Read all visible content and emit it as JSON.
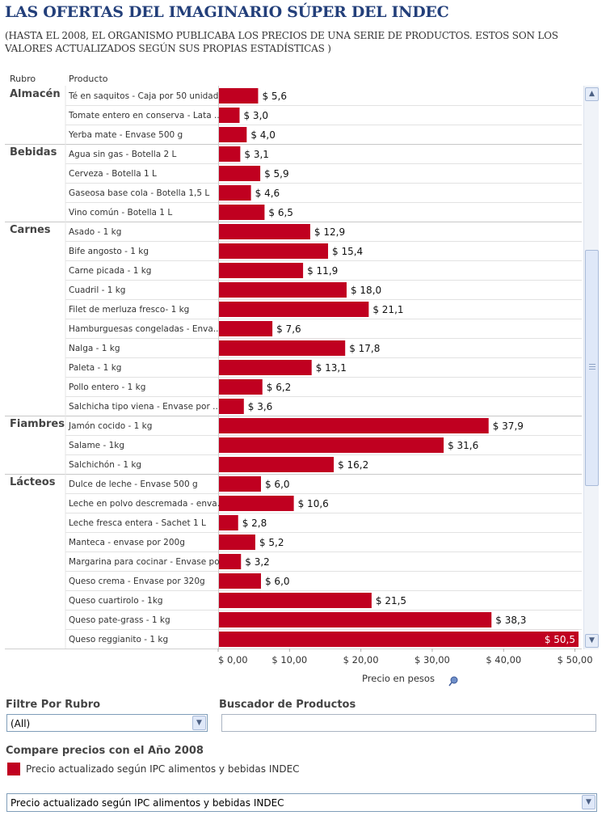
{
  "header": {
    "title": "LAS OFERTAS DEL IMAGINARIO SÚPER DEL INDEC",
    "subtitle": "(HASTA EL 2008, EL ORGANISMO PUBLICABA LOS PRECIOS DE UNA SERIE DE PRODUCTOS. ESTOS SON LOS VALORES ACTUALIZADOS SEGÚN SUS PROPIAS ESTADÍSTICAS )"
  },
  "columns": {
    "rubro": "Rubro",
    "producto": "Producto"
  },
  "chart_data": {
    "type": "bar",
    "orientation": "horizontal",
    "title": "LAS OFERTAS DEL IMAGINARIO SÚPER DEL INDEC",
    "xlabel": "Precio en pesos",
    "ylabel": "Producto",
    "xlim": [
      0,
      50.5
    ],
    "x_ticks": [
      0,
      10,
      20,
      30,
      40,
      50
    ],
    "x_tick_labels": [
      "$ 0,00",
      "$ 10,00",
      "$ 20,00",
      "$ 30,00",
      "$ 40,00",
      "$ 50,00"
    ],
    "color": "#c00020",
    "groups": [
      {
        "rubro": "Almacén",
        "items": [
          {
            "producto": "Té en saquitos - Caja por 50 unidad..",
            "value": 5.6,
            "label": "$ 5,6"
          },
          {
            "producto": "Tomate entero en conserva - Lata  ..",
            "value": 3.0,
            "label": "$ 3,0"
          },
          {
            "producto": "Yerba mate - Envase 500 g",
            "value": 4.0,
            "label": "$ 4,0"
          }
        ]
      },
      {
        "rubro": "Bebidas",
        "items": [
          {
            "producto": "Agua sin gas - Botella 2 L",
            "value": 3.1,
            "label": "$ 3,1"
          },
          {
            "producto": "Cerveza - Botella 1 L",
            "value": 5.9,
            "label": "$ 5,9"
          },
          {
            "producto": "Gaseosa base cola - Botella 1,5 L",
            "value": 4.6,
            "label": "$ 4,6"
          },
          {
            "producto": "Vino común - Botella 1 L",
            "value": 6.5,
            "label": "$ 6,5"
          }
        ]
      },
      {
        "rubro": "Carnes",
        "items": [
          {
            "producto": "Asado - 1 kg",
            "value": 12.9,
            "label": "$ 12,9"
          },
          {
            "producto": "Bife angosto - 1 kg",
            "value": 15.4,
            "label": "$ 15,4"
          },
          {
            "producto": "Carne picada - 1 kg",
            "value": 11.9,
            "label": "$ 11,9"
          },
          {
            "producto": "Cuadril - 1 kg",
            "value": 18.0,
            "label": "$ 18,0"
          },
          {
            "producto": "Filet de merluza fresco- 1 kg",
            "value": 21.1,
            "label": "$ 21,1"
          },
          {
            "producto": "Hamburguesas congeladas - Envа..",
            "value": 7.6,
            "label": "$ 7,6"
          },
          {
            "producto": "Nalga - 1 kg",
            "value": 17.8,
            "label": "$ 17,8"
          },
          {
            "producto": "Paleta - 1 kg",
            "value": 13.1,
            "label": "$ 13,1"
          },
          {
            "producto": "Pollo entero - 1 kg",
            "value": 6.2,
            "label": "$ 6,2"
          },
          {
            "producto": "Salchicha tipo viena - Envase por ..",
            "value": 3.6,
            "label": "$ 3,6"
          }
        ]
      },
      {
        "rubro": "Fiambres",
        "items": [
          {
            "producto": "Jamón cocido - 1 kg",
            "value": 37.9,
            "label": "$ 37,9"
          },
          {
            "producto": "Salame - 1kg",
            "value": 31.6,
            "label": "$ 31,6"
          },
          {
            "producto": "Salchichón - 1 kg",
            "value": 16.2,
            "label": "$ 16,2"
          }
        ]
      },
      {
        "rubro": "Lácteos",
        "items": [
          {
            "producto": "Dulce de leche - Envase 500 g",
            "value": 6.0,
            "label": "$ 6,0"
          },
          {
            "producto": "Leche en polvo descremada - enva..",
            "value": 10.6,
            "label": "$ 10,6"
          },
          {
            "producto": "Leche fresca entera - Sachet 1 L",
            "value": 2.8,
            "label": "$ 2,8"
          },
          {
            "producto": "Manteca - envase por 200g",
            "value": 5.2,
            "label": "$ 5,2"
          },
          {
            "producto": "Margarina para cocinar - Envase po..",
            "value": 3.2,
            "label": "$ 3,2"
          },
          {
            "producto": "Queso crema - Envase por 320g",
            "value": 6.0,
            "label": "$ 6,0"
          },
          {
            "producto": "Queso cuartirolo - 1kg",
            "value": 21.5,
            "label": "$ 21,5"
          },
          {
            "producto": "Queso pate-grass - 1 kg",
            "value": 38.3,
            "label": "$ 38,3"
          },
          {
            "producto": "Queso reggianito - 1 kg",
            "value": 50.5,
            "label": "$ 50,5"
          }
        ]
      }
    ]
  },
  "icons": {
    "axis_pin": "pushpin-icon",
    "scroll_up": "arrow-up-icon",
    "scroll_down": "arrow-down-icon",
    "dropdown": "chevron-down-icon"
  },
  "filter": {
    "label": "Filtre Por Rubro",
    "selected": "(All)"
  },
  "search": {
    "label": "Buscador de Productos",
    "value": ""
  },
  "compare": {
    "label": "Compare precios con el Año 2008",
    "legend_text": "Precio actualizado según IPC alimentos y bebidas INDEC",
    "selected": "Precio actualizado según IPC alimentos y bebidas INDEC"
  }
}
